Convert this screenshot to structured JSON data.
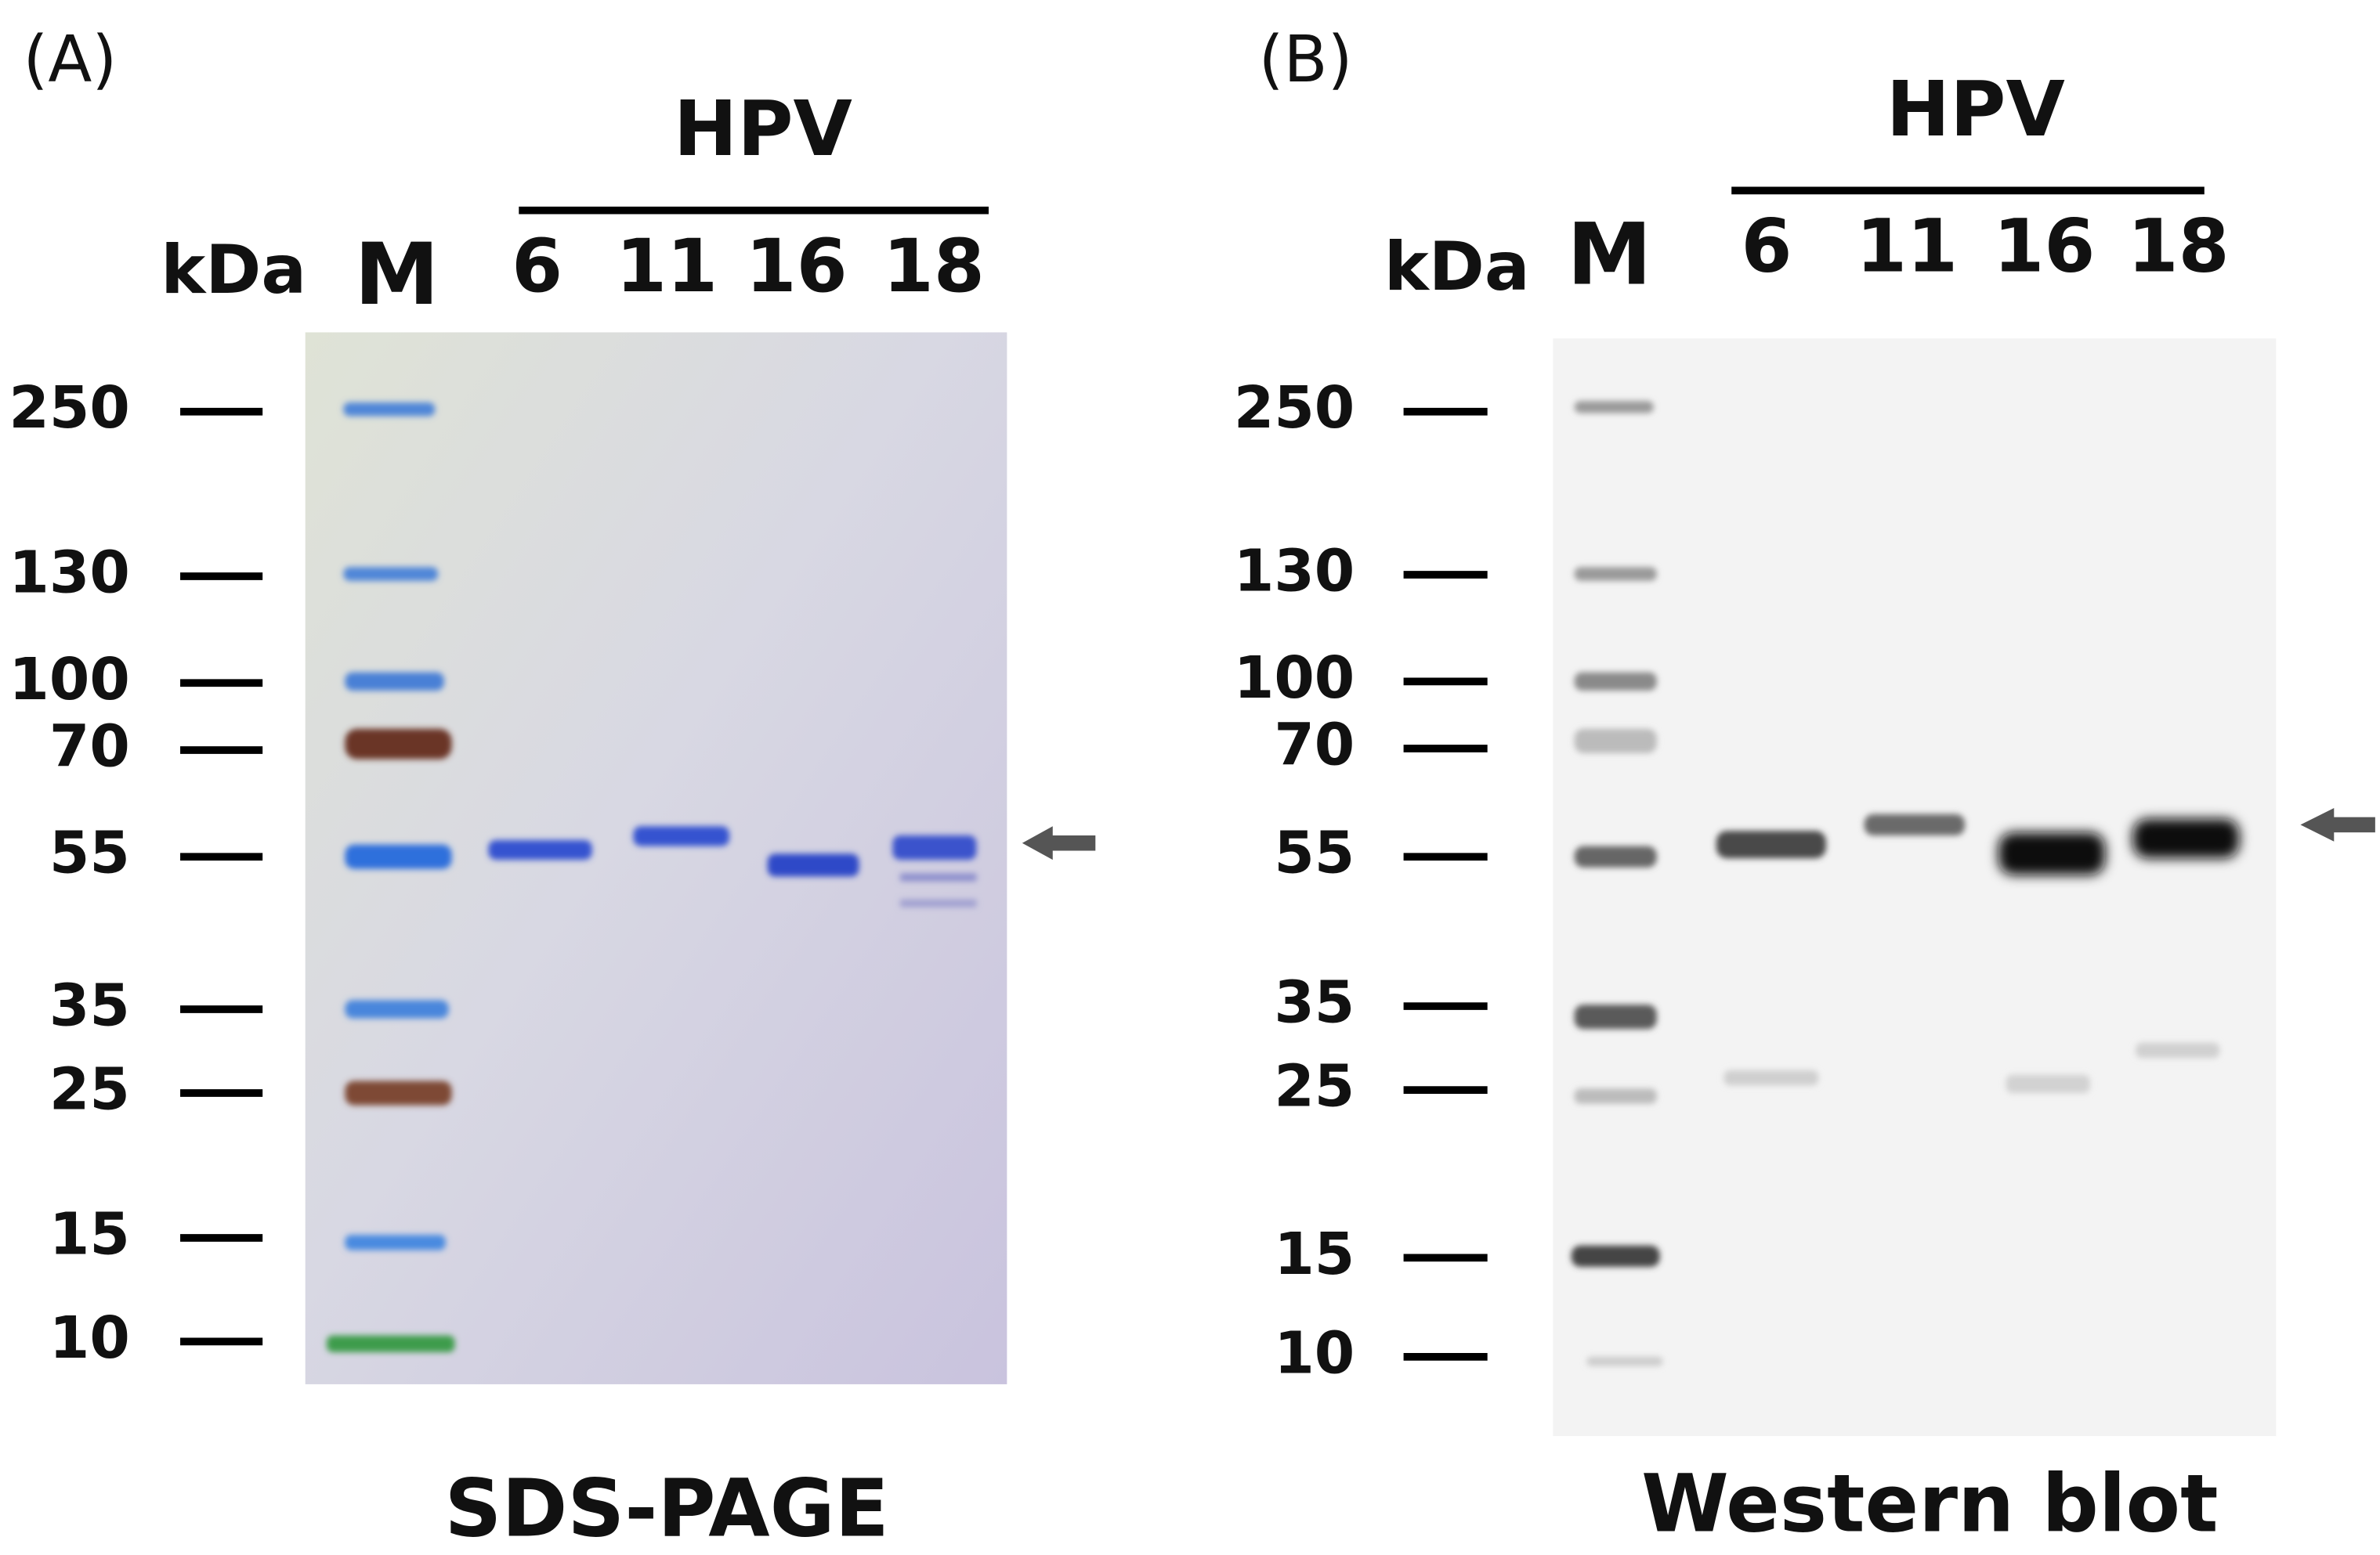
{
  "panels": [
    {
      "label": "(A)",
      "group": "HPV",
      "unit": "kDa",
      "lanes": [
        "M",
        "6",
        "11",
        "16",
        "18"
      ],
      "markers": [
        "250",
        "130",
        "100",
        "70",
        "55",
        "35",
        "25",
        "15",
        "10"
      ],
      "caption": "SDS-PAGE"
    },
    {
      "label": "(B)",
      "group": "HPV",
      "unit": "kDa",
      "lanes": [
        "M",
        "6",
        "11",
        "16",
        "18"
      ],
      "markers": [
        "250",
        "130",
        "100",
        "70",
        "55",
        "35",
        "25",
        "15",
        "10"
      ],
      "caption": "Western blot"
    }
  ]
}
